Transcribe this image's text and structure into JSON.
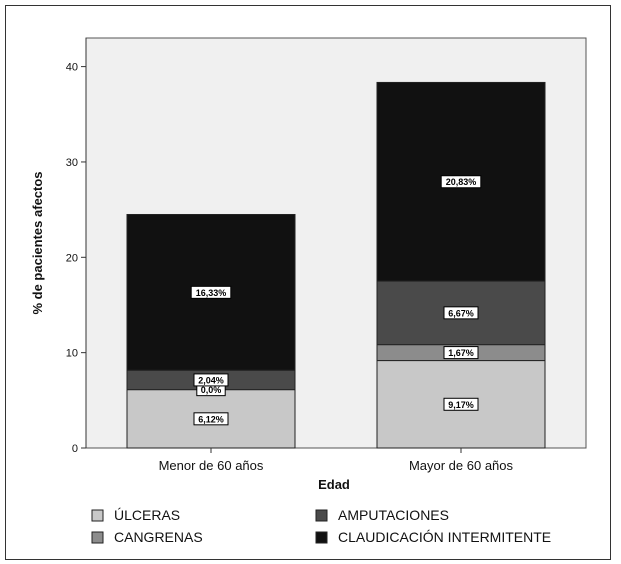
{
  "chart_data": {
    "type": "bar",
    "stacked": true,
    "title": "",
    "xlabel": "Edad",
    "ylabel": "% de pacientes afectos",
    "ylim": [
      0,
      43
    ],
    "yticks": [
      0,
      10,
      20,
      30,
      40
    ],
    "categories": [
      "Menor de 60 años",
      "Mayor de 60 años"
    ],
    "series": [
      {
        "name": "ÚLCERAS",
        "color": "#c8c8c8",
        "values": [
          6.12,
          9.17
        ],
        "labels": [
          "6,12%",
          "9,17%"
        ]
      },
      {
        "name": "CANGRENAS",
        "color": "#8c8c8c",
        "values": [
          0.0,
          1.67
        ],
        "labels": [
          "0,0%",
          "1,67%"
        ]
      },
      {
        "name": "AMPUTACIONES",
        "color": "#4a4a4a",
        "values": [
          2.04,
          6.67
        ],
        "labels": [
          "2,04%",
          "6,67%"
        ]
      },
      {
        "name": "CLAUDICACIÓN INTERMITENTE",
        "color": "#111111",
        "values": [
          16.33,
          20.83
        ],
        "labels": [
          "16,33%",
          "20,83%"
        ]
      }
    ],
    "grid": false,
    "legend_position": "bottom"
  }
}
